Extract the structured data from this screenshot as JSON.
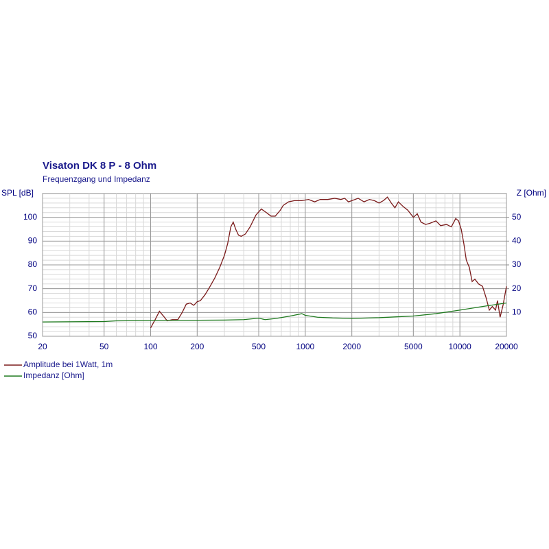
{
  "chart_data": {
    "type": "line",
    "title": "Visaton DK 8 P -  8 Ohm",
    "subtitle": "Frequenzgang und Impedanz",
    "y_label": "SPL [dB]",
    "y2_label": "Z [Ohm]",
    "xscale": "log",
    "xlim": [
      20,
      20000
    ],
    "xticks": [
      20,
      50,
      100,
      200,
      500,
      1000,
      2000,
      5000,
      10000,
      20000
    ],
    "ylim": [
      50,
      110
    ],
    "yticks": [
      50,
      60,
      70,
      80,
      90,
      100
    ],
    "y2lim": [
      0,
      60
    ],
    "y2ticks": [
      10,
      20,
      30,
      40,
      50
    ],
    "grid": true,
    "legend": "bottom-left",
    "series": [
      {
        "name": "Amplitude bei 1Watt, 1m",
        "color": "#7a1a1a",
        "x": [
          100,
          107,
          114,
          121,
          128,
          138,
          150,
          160,
          170,
          180,
          190,
          200,
          210,
          225,
          240,
          260,
          280,
          300,
          315,
          330,
          342,
          355,
          370,
          385,
          410,
          440,
          480,
          520,
          560,
          600,
          640,
          690,
          720,
          780,
          850,
          950,
          1050,
          1150,
          1250,
          1400,
          1550,
          1700,
          1800,
          1900,
          2000,
          2200,
          2400,
          2600,
          2800,
          3000,
          3200,
          3400,
          3600,
          3800,
          4000,
          4300,
          4600,
          5000,
          5300,
          5600,
          6000,
          6400,
          7000,
          7500,
          8200,
          8800,
          9400,
          9800,
          10200,
          10600,
          11000,
          11500,
          12000,
          12500,
          13200,
          14000,
          14800,
          15500,
          16200,
          17000,
          17500,
          18200,
          19000,
          19500,
          20000
        ],
        "values": [
          53.5,
          57,
          60.5,
          58.5,
          56.5,
          57,
          57,
          60,
          63.5,
          64,
          63,
          64.5,
          65,
          67.5,
          70.5,
          74.5,
          79,
          84,
          89,
          96,
          98,
          95,
          92.5,
          92,
          93,
          96,
          101,
          103.5,
          102,
          100.5,
          100.5,
          103,
          105,
          106.5,
          107,
          107,
          107.5,
          106.5,
          107.5,
          107.5,
          108,
          107.5,
          108,
          106.5,
          107,
          108,
          106.5,
          107.5,
          107,
          106,
          107,
          108.5,
          106,
          104,
          106.5,
          104.5,
          103,
          100,
          101.5,
          98,
          97,
          97.5,
          98.5,
          96.5,
          97,
          96,
          99.5,
          98.5,
          95,
          89,
          82,
          79,
          73,
          74,
          72,
          71,
          66,
          61,
          62.5,
          61,
          65,
          58,
          63,
          67,
          71
        ]
      },
      {
        "name": "Impedanz [Ohm]",
        "color": "#1f7a1f",
        "axis": "y2",
        "x": [
          20,
          50,
          60,
          100,
          300,
          400,
          500,
          550,
          650,
          800,
          950,
          1000,
          1200,
          1500,
          2000,
          3000,
          4000,
          5000,
          7000,
          10000,
          14000,
          20000
        ],
        "values": [
          6,
          6.2,
          6.5,
          6.6,
          6.8,
          7,
          7.6,
          7,
          7.5,
          8.5,
          9.5,
          8.8,
          8,
          7.7,
          7.5,
          7.8,
          8.2,
          8.5,
          9.5,
          11,
          12.5,
          14
        ]
      }
    ]
  }
}
